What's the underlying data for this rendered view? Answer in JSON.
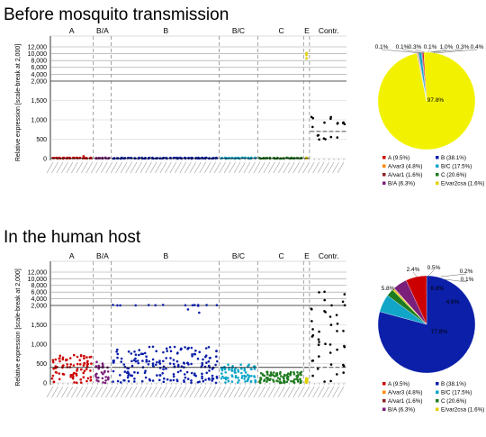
{
  "chart_data": [
    {
      "type": "scatter",
      "title": "Before mosquito transmission",
      "ylabel": "Relative expression [scale-break at 2,000]",
      "y_ticks_lower": [
        0,
        500,
        1000,
        1500,
        2000
      ],
      "y_tick_labels_lower": [
        "0",
        "500",
        "1,000",
        "1,500",
        "2,000"
      ],
      "y_ticks_upper": [
        4000,
        6000,
        8000,
        10000,
        12000
      ],
      "y_tick_labels_upper": [
        "4,000",
        "6,000",
        "8,000",
        "10,000",
        "12,000"
      ],
      "y_break": 2000,
      "group_labels": [
        "A",
        "B/A",
        "B",
        "B/C",
        "C",
        "E",
        "Contr."
      ],
      "group_colors": {
        "A": "#cc0000",
        "B/A": "#7a1f7a",
        "B": "#0b1fa8",
        "B/C": "#11a6c8",
        "C": "#1e7a1e",
        "E": "#e0d000",
        "Contr.": "#000000"
      },
      "grid": true
    },
    {
      "type": "pie",
      "values": [
        97.8,
        0.1,
        0.1,
        0.3,
        0.1,
        1.0,
        0.3,
        0.4
      ],
      "slice_labels": [
        "97.8%",
        "0.1%",
        "0.1%",
        "0.3%",
        "0.1%",
        "1.0%",
        "0.3%",
        "0.4%"
      ],
      "colors": [
        "#f2f200",
        "#0b1fa8",
        "#2266ee",
        "#e05030",
        "#1e7a1e",
        "#11a6c8",
        "#7a1f7a",
        "#cc0000"
      ]
    },
    {
      "type": "scatter",
      "title": "In the human host",
      "ylabel": "Relative expression [scale-break at 2,000]",
      "y_ticks_lower": [
        0,
        500,
        1000,
        1500,
        2000
      ],
      "y_tick_labels_lower": [
        "0",
        "500",
        "1,000",
        "1,500",
        "2,000"
      ],
      "y_ticks_upper": [
        4000,
        6000,
        8000,
        10000,
        12000
      ],
      "y_tick_labels_upper": [
        "4,000",
        "6,000",
        "8,000",
        "10,000",
        "12,000"
      ],
      "y_break": 2000,
      "group_labels": [
        "A",
        "B/A",
        "B",
        "B/C",
        "C",
        "E",
        "Contr."
      ],
      "grid": true
    },
    {
      "type": "pie",
      "values": [
        77.8,
        5.8,
        2.4,
        0.5,
        0.2,
        0.1,
        4.6,
        6.8
      ],
      "slice_labels": [
        "77.8%",
        "5.8%",
        "2.4%",
        "0.5%",
        "0.2%",
        "0.1%",
        "4.6%",
        "6.8%"
      ],
      "colors": [
        "#0b1fa8",
        "#11a6c8",
        "#1e7a1e",
        "#e0d000",
        "#e05030",
        "#ff8800",
        "#7a1f7a",
        "#cc0000"
      ]
    }
  ],
  "legend": {
    "entries": [
      {
        "label": "A (9.5%)",
        "color": "#cc0000"
      },
      {
        "label": "B (38.1%)",
        "color": "#0b1fa8"
      },
      {
        "label": "A/var3 (4.8%)",
        "color": "#ff8800"
      },
      {
        "label": "B/C (17.5%)",
        "color": "#11a6c8"
      },
      {
        "label": "A/var1 (1.6%)",
        "color": "#8b2020"
      },
      {
        "label": "C (20.6%)",
        "color": "#1e7a1e"
      },
      {
        "label": "B/A (6.3%)",
        "color": "#7a1f7a"
      },
      {
        "label": "E/var2csa (1.6%)",
        "color": "#e0d000"
      }
    ]
  }
}
